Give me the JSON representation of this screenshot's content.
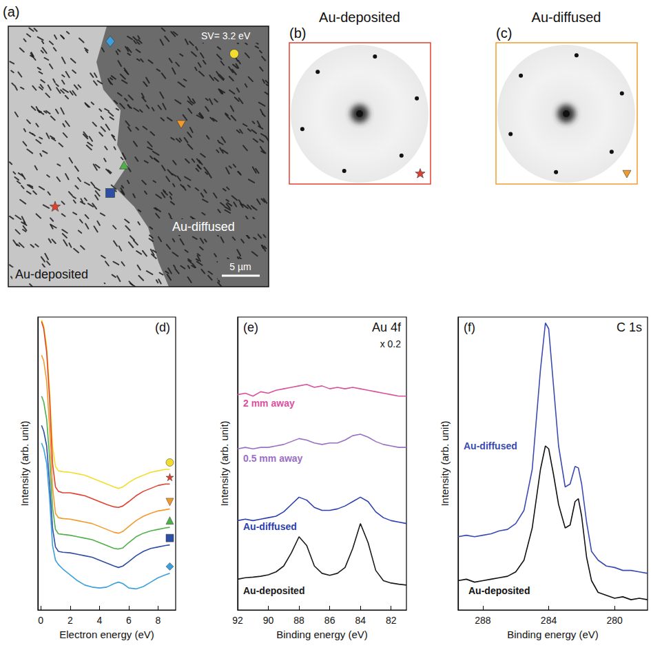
{
  "figure_panels": [
    {
      "panel": "(a)",
      "type": "image",
      "annotations": [
        "SV= 3.2 eV",
        "Au-diffused",
        "Au-deposited"
      ],
      "scale_bar": "5 µm",
      "markers": [
        {
          "marker": "circle",
          "color": "#f2dd2e"
        },
        {
          "marker": "diamond",
          "color": "#3d9fdc"
        },
        {
          "marker": "triangle-down",
          "color": "#f39a2c"
        },
        {
          "marker": "triangle",
          "color": "#4fb04a"
        },
        {
          "marker": "square",
          "color": "#2c4ea3"
        },
        {
          "marker": "star",
          "color": "#e2402f"
        }
      ]
    },
    {
      "panel": "(b)",
      "type": "image",
      "title": "Au-deposited",
      "marker": "star",
      "color": "#e2402f"
    },
    {
      "panel": "(c)",
      "type": "image",
      "title": "Au-diffused",
      "marker": "triangle-down",
      "color": "#f39a2c"
    }
  ],
  "chart_data": [
    {
      "type": "line",
      "panel": "(d)",
      "xlabel": "Electron energy (eV)",
      "ylabel": "Intensity (arb. unit)",
      "xlim": [
        -0.2,
        9.2
      ],
      "xticks": [
        0,
        2,
        4,
        6,
        8
      ],
      "ylim": [
        0,
        10
      ],
      "tick_labels": "x",
      "x": [
        0.05,
        0.2,
        0.4,
        0.6,
        0.8,
        1.0,
        1.2,
        1.5,
        2,
        2.5,
        3,
        3.5,
        4,
        4.5,
        5,
        5.3,
        5.6,
        6,
        6.5,
        7,
        7.5,
        8,
        8.5,
        8.8
      ],
      "series": [
        {
          "color": "#f2dd2e",
          "marker": "circle",
          "values": [
            9.9,
            9.7,
            9.0,
            7.5,
            5.6,
            4.9,
            4.75,
            4.72,
            4.7,
            4.65,
            4.6,
            4.5,
            4.4,
            4.3,
            4.2,
            4.15,
            4.2,
            4.35,
            4.5,
            4.6,
            4.7,
            4.75,
            4.8,
            4.8
          ]
        },
        {
          "color": "#e2402f",
          "marker": "star",
          "values": [
            9.85,
            9.6,
            8.8,
            7.2,
            5.0,
            4.2,
            4.05,
            4.0,
            4.0,
            3.95,
            3.9,
            3.8,
            3.7,
            3.6,
            3.52,
            3.5,
            3.55,
            3.7,
            3.9,
            4.05,
            4.15,
            4.25,
            4.3,
            4.3
          ]
        },
        {
          "color": "#f39a2c",
          "marker": "triangle-down",
          "values": [
            8.7,
            8.5,
            7.8,
            6.2,
            4.2,
            3.3,
            3.15,
            3.12,
            3.1,
            3.05,
            3.0,
            2.95,
            2.85,
            2.75,
            2.65,
            2.62,
            2.68,
            2.85,
            3.05,
            3.2,
            3.3,
            3.38,
            3.42,
            3.45
          ]
        },
        {
          "color": "#4fb04a",
          "marker": "triangle",
          "values": [
            7.3,
            7.1,
            6.5,
            5.2,
            3.5,
            2.75,
            2.6,
            2.58,
            2.55,
            2.5,
            2.45,
            2.4,
            2.3,
            2.2,
            2.1,
            2.08,
            2.12,
            2.3,
            2.5,
            2.62,
            2.7,
            2.75,
            2.8,
            2.82
          ]
        },
        {
          "color": "#2c4ea3",
          "marker": "square",
          "values": [
            6.3,
            6.1,
            5.6,
            4.3,
            2.8,
            2.15,
            2.0,
            1.97,
            1.95,
            1.9,
            1.85,
            1.8,
            1.7,
            1.6,
            1.5,
            1.45,
            1.5,
            1.65,
            1.85,
            2.0,
            2.1,
            2.15,
            2.2,
            2.22
          ]
        },
        {
          "color": "#3d9fdc",
          "marker": "diamond",
          "values": [
            5.7,
            5.5,
            5.0,
            3.8,
            2.2,
            1.7,
            1.55,
            1.4,
            1.2,
            1.0,
            0.85,
            0.78,
            0.75,
            0.78,
            0.9,
            0.95,
            0.9,
            0.75,
            0.72,
            0.8,
            0.95,
            1.1,
            1.2,
            1.25
          ]
        }
      ]
    },
    {
      "type": "line",
      "panel": "(e)",
      "title": "Au 4f",
      "annotations": [
        "x 0.2"
      ],
      "xlabel": "Binding energy (eV)",
      "ylabel": "Intensity (arb. unit)",
      "xlim": [
        92,
        81
      ],
      "xticks": [
        92,
        90,
        88,
        86,
        84,
        82
      ],
      "ylim": [
        0,
        10
      ],
      "tick_labels": "x",
      "x": [
        92,
        91.5,
        91,
        90.5,
        90,
        89.5,
        89,
        88.5,
        88,
        87.5,
        87,
        86.5,
        86,
        85.5,
        85,
        84.5,
        84,
        83.5,
        83,
        82.5,
        82,
        81.5,
        81
      ],
      "series": [
        {
          "name": "2 mm away",
          "color": "#d9529e",
          "values": [
            7.35,
            7.4,
            7.3,
            7.45,
            7.4,
            7.5,
            7.55,
            7.6,
            7.65,
            7.7,
            7.6,
            7.65,
            7.55,
            7.6,
            7.55,
            7.6,
            7.55,
            7.5,
            7.45,
            7.4,
            7.35,
            7.3,
            7.3
          ]
        },
        {
          "name": "0.5 mm away",
          "color": "#9a6fc2",
          "values": [
            5.5,
            5.55,
            5.5,
            5.55,
            5.55,
            5.6,
            5.65,
            5.75,
            5.85,
            5.8,
            5.7,
            5.65,
            5.7,
            5.7,
            5.8,
            5.95,
            6.0,
            5.9,
            5.75,
            5.65,
            5.6,
            5.55,
            5.55
          ]
        },
        {
          "name": "Au-diffused",
          "color": "#2c3fb0",
          "values": [
            3.05,
            3.1,
            3.05,
            3.1,
            3.15,
            3.2,
            3.35,
            3.6,
            3.85,
            3.75,
            3.5,
            3.4,
            3.4,
            3.45,
            3.55,
            3.7,
            3.85,
            3.7,
            3.35,
            3.15,
            3.05,
            3.0,
            2.95
          ]
        },
        {
          "name": "Au-deposited",
          "color": "#1a1a1a",
          "values": [
            1.05,
            1.1,
            1.12,
            1.15,
            1.2,
            1.3,
            1.5,
            1.95,
            2.5,
            2.2,
            1.5,
            1.25,
            1.18,
            1.25,
            1.45,
            2.1,
            2.95,
            2.3,
            1.35,
            1.0,
            0.92,
            0.88,
            0.85
          ]
        }
      ]
    },
    {
      "type": "line",
      "panel": "(f)",
      "title": "C 1s",
      "xlabel": "Binding energy (eV)",
      "ylabel": "Intensity (arb. unit)",
      "xlim": [
        289.5,
        278
      ],
      "xticks": [
        288,
        284,
        280
      ],
      "ylim": [
        0,
        10
      ],
      "tick_labels": "x",
      "x": [
        289.5,
        289,
        288.5,
        288,
        287.5,
        287,
        286.5,
        286,
        285.5,
        285,
        284.5,
        284.2,
        284,
        283.7,
        283.4,
        283,
        282.7,
        282.4,
        282.2,
        282,
        281.7,
        281.4,
        281,
        280.5,
        280,
        279.5,
        279,
        278.5,
        278
      ],
      "series": [
        {
          "name": "Au-diffused",
          "color": "#3a4bb0",
          "values": [
            2.5,
            2.55,
            2.5,
            2.55,
            2.6,
            2.7,
            2.75,
            2.95,
            3.4,
            4.8,
            8.2,
            9.8,
            9.6,
            7.6,
            5.6,
            4.2,
            4.3,
            4.9,
            4.85,
            4.3,
            3.0,
            2.0,
            1.7,
            1.5,
            1.45,
            1.35,
            1.35,
            1.3,
            1.25
          ]
        },
        {
          "name": "Au-deposited",
          "color": "#111111",
          "values": [
            1.0,
            1.05,
            0.95,
            1.0,
            1.05,
            1.1,
            1.15,
            1.3,
            1.7,
            2.8,
            4.8,
            5.6,
            5.5,
            4.6,
            3.6,
            2.8,
            2.9,
            3.7,
            3.8,
            3.2,
            1.8,
            1.0,
            0.6,
            0.5,
            0.4,
            0.45,
            0.35,
            0.4,
            0.35
          ]
        }
      ]
    }
  ]
}
